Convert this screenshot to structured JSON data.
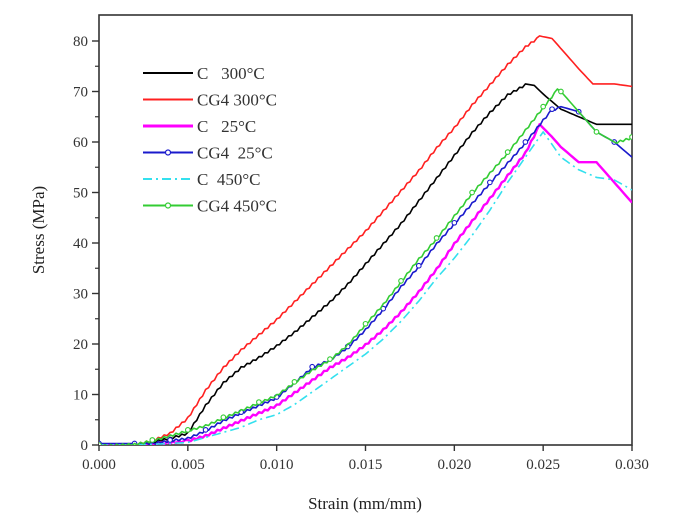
{
  "chart_data": {
    "type": "line",
    "title": "",
    "xlabel": "Strain (mm/mm)",
    "ylabel": "Stress (MPa)",
    "xlim": [
      0.0,
      0.03
    ],
    "ylim": [
      0,
      85
    ],
    "xticks": [
      "0.000",
      "0.005",
      "0.010",
      "0.015",
      "0.020",
      "0.025",
      "0.030"
    ],
    "xtick_values": [
      0.0,
      0.005,
      0.01,
      0.015,
      0.02,
      0.025,
      0.03
    ],
    "yticks": [
      "0",
      "10",
      "20",
      "30",
      "40",
      "50",
      "60",
      "70",
      "80"
    ],
    "ytick_values": [
      0,
      10,
      20,
      30,
      40,
      50,
      60,
      70,
      80
    ],
    "grid": false,
    "legend_position": "top-left",
    "series": [
      {
        "name": "C   300°C",
        "color": "#000000",
        "style": "solid",
        "marker": "none",
        "x": [
          0.0,
          0.002,
          0.003,
          0.004,
          0.005,
          0.006,
          0.007,
          0.008,
          0.009,
          0.01,
          0.011,
          0.012,
          0.013,
          0.014,
          0.015,
          0.016,
          0.017,
          0.018,
          0.019,
          0.02,
          0.021,
          0.022,
          0.023,
          0.024,
          0.0245,
          0.025,
          0.026,
          0.027,
          0.028,
          0.029,
          0.03
        ],
        "y": [
          0,
          0.2,
          0.8,
          1.5,
          2.5,
          8,
          12.5,
          15.5,
          17.5,
          19.8,
          22.5,
          25.5,
          28.5,
          32,
          36,
          40,
          44,
          48.5,
          53,
          57.5,
          62,
          66,
          69.5,
          71.5,
          71.2,
          69.5,
          66.5,
          65,
          63.5,
          63.5,
          63.5
        ]
      },
      {
        "name": "CG4 300°C",
        "color": "#ff2020",
        "style": "solid",
        "marker": "none",
        "x": [
          0.0,
          0.002,
          0.003,
          0.004,
          0.005,
          0.006,
          0.007,
          0.008,
          0.009,
          0.01,
          0.011,
          0.012,
          0.013,
          0.014,
          0.015,
          0.016,
          0.017,
          0.018,
          0.019,
          0.02,
          0.021,
          0.022,
          0.023,
          0.024,
          0.0248,
          0.0255,
          0.026,
          0.027,
          0.0278,
          0.029,
          0.03
        ],
        "y": [
          0,
          0.3,
          1,
          2.5,
          5.5,
          11,
          15.5,
          19,
          22,
          25,
          28.5,
          32,
          35.5,
          39,
          42.5,
          46.5,
          50.5,
          54.5,
          59,
          63,
          67.5,
          71.5,
          75.5,
          79,
          81,
          80.5,
          78.5,
          74.5,
          71.5,
          71.5,
          71
        ]
      },
      {
        "name": "C   25°C",
        "color": "#ff00ff",
        "style": "solid",
        "marker": "none",
        "x": [
          0.0,
          0.002,
          0.0035,
          0.005,
          0.006,
          0.007,
          0.008,
          0.009,
          0.01,
          0.011,
          0.012,
          0.013,
          0.014,
          0.015,
          0.016,
          0.017,
          0.018,
          0.019,
          0.02,
          0.021,
          0.022,
          0.023,
          0.024,
          0.0248,
          0.0255,
          0.026,
          0.027,
          0.028,
          0.029,
          0.03
        ],
        "y": [
          0,
          0,
          0.5,
          1,
          2,
          3.5,
          5,
          6.5,
          8,
          10.5,
          13,
          15.5,
          17.5,
          20,
          23,
          26.5,
          30.5,
          35,
          40,
          44.5,
          49,
          53.5,
          58,
          63.5,
          61,
          59,
          56,
          56,
          52,
          48
        ]
      },
      {
        "name": "CG4  25°C",
        "color": "#1a1acc",
        "style": "solid",
        "marker": "circle",
        "x": [
          0.0,
          0.001,
          0.002,
          0.003,
          0.004,
          0.005,
          0.006,
          0.007,
          0.008,
          0.009,
          0.01,
          0.011,
          0.012,
          0.013,
          0.014,
          0.015,
          0.016,
          0.017,
          0.018,
          0.019,
          0.02,
          0.021,
          0.022,
          0.023,
          0.024,
          0.025,
          0.0255,
          0.026,
          0.027,
          0.028,
          0.029,
          0.03
        ],
        "y": [
          0.3,
          0.3,
          0.3,
          0.5,
          1,
          1.5,
          3,
          5,
          6.5,
          8,
          9.5,
          12.5,
          15.5,
          17,
          19.5,
          23,
          27,
          31.5,
          35.5,
          40,
          44,
          48,
          52,
          56,
          60,
          64.5,
          66.5,
          67,
          66,
          62,
          60,
          57
        ]
      },
      {
        "name": "C  450°C",
        "color": "#33e0ee",
        "style": "dashdot",
        "marker": "none",
        "x": [
          0.0,
          0.002,
          0.004,
          0.005,
          0.006,
          0.007,
          0.008,
          0.009,
          0.01,
          0.011,
          0.012,
          0.013,
          0.014,
          0.015,
          0.016,
          0.017,
          0.018,
          0.019,
          0.02,
          0.021,
          0.022,
          0.023,
          0.024,
          0.025,
          0.026,
          0.027,
          0.028,
          0.029,
          0.03
        ],
        "y": [
          0,
          0,
          0.3,
          0.5,
          1.5,
          2.5,
          3.5,
          5,
          6,
          8,
          10.5,
          13,
          15.5,
          18,
          21,
          24.5,
          28.5,
          33,
          37,
          41.5,
          46.5,
          52,
          57,
          62,
          57,
          54.5,
          53,
          52.5,
          50.5
        ]
      },
      {
        "name": "CG4 450°C",
        "color": "#33cc33",
        "style": "solid",
        "marker": "circle",
        "x": [
          0.0,
          0.002,
          0.003,
          0.004,
          0.005,
          0.006,
          0.007,
          0.008,
          0.009,
          0.01,
          0.011,
          0.012,
          0.013,
          0.014,
          0.015,
          0.016,
          0.017,
          0.018,
          0.019,
          0.02,
          0.021,
          0.022,
          0.023,
          0.024,
          0.025,
          0.0258,
          0.026,
          0.027,
          0.028,
          0.029,
          0.03
        ],
        "y": [
          0,
          0.3,
          1,
          2,
          3,
          4,
          5.5,
          7,
          8.5,
          10,
          12.5,
          15,
          17,
          20,
          24,
          28,
          32.5,
          37,
          41,
          45.5,
          50,
          54,
          58,
          62.5,
          67,
          70.5,
          70,
          66,
          62,
          60,
          61
        ]
      }
    ]
  }
}
